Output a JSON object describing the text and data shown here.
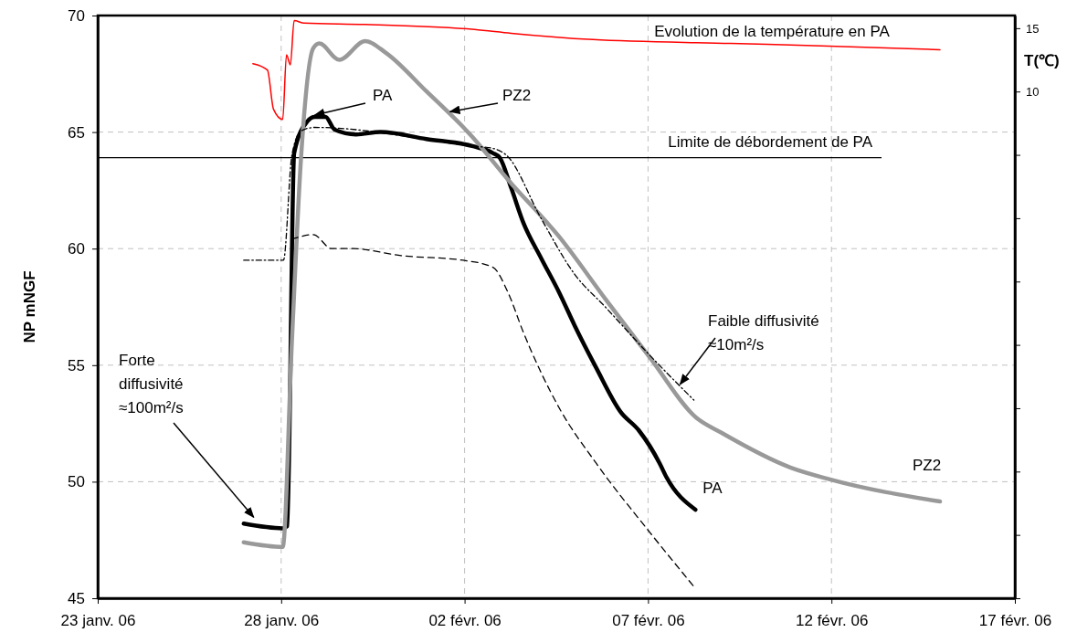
{
  "chart_data": {
    "type": "line",
    "ylabel": "NP mNGF",
    "y2label": "T(℃)",
    "xlim": [
      "--01-23",
      "--02-17"
    ],
    "xticks": [
      {
        "value": "--01-23",
        "label": "23 janv. 06"
      },
      {
        "value": "--01-28",
        "label": "28 janv. 06"
      },
      {
        "value": "--02-02",
        "label": "02 févr. 06"
      },
      {
        "value": "--02-07",
        "label": "07 févr. 06"
      },
      {
        "value": "--02-12",
        "label": "12 févr. 06"
      },
      {
        "value": "--02-17",
        "label": "17 févr. 06"
      }
    ],
    "ylim": [
      45,
      70
    ],
    "yticks": [
      45,
      50,
      55,
      60,
      65,
      70
    ],
    "y2lim": [
      -30,
      16
    ],
    "y2ticks": [
      {
        "value": -30,
        "label": null
      },
      {
        "value": -25,
        "label": null
      },
      {
        "value": -20,
        "label": null
      },
      {
        "value": -15,
        "label": null
      },
      {
        "value": -10,
        "label": null
      },
      {
        "value": -5,
        "label": null
      },
      {
        "value": 0,
        "label": null
      },
      {
        "value": 5,
        "label": null
      },
      10,
      15
    ],
    "grid": true,
    "marker": "none",
    "series": [
      {
        "name": "PA",
        "color": "#000000",
        "line_style": "solid",
        "x": [
          "--01-26T23:30",
          "--01-28T01:00",
          "--01-28T04:00",
          "--01-28T08:30",
          "--01-28T17:00",
          "--01-28T22:00",
          "--01-29T05:00",
          "--01-29T11:00",
          "--01-30T01:00",
          "--01-30T17:00",
          "--01-31T23:00",
          "--02-02T05:00",
          "--02-02T18:30",
          "--02-02T23:00",
          "--02-03T06:30",
          "--02-03T14:30",
          "--02-04T02:00",
          "--02-04T14:00",
          "--02-05T00:00",
          "--02-05T14:00",
          "--02-06T06:00",
          "--02-06T18:00",
          "--02-07T07:30",
          "--02-07T12:00",
          "--02-08T07:00"
        ],
        "values": [
          48.2,
          48.0,
          48.1,
          64.1,
          65.45,
          65.65,
          65.65,
          65.1,
          64.9,
          65.0,
          64.7,
          64.4,
          64.1,
          63.9,
          62.6,
          61.1,
          59.6,
          58.1,
          56.7,
          54.9,
          53.0,
          52.2,
          50.8,
          50.2,
          48.8
        ]
      },
      {
        "name": "PZ2",
        "color": "#999999",
        "line_style": "solid",
        "x": [
          "--01-26T23:30",
          "--01-28T01:00",
          "--01-28T07:00",
          "--01-28T13:00",
          "--01-28T21:00",
          "--01-29T01:00",
          "--01-29T14:00",
          "--01-30T07:00",
          "--01-30T20:30",
          "--01-31T23:00",
          "--02-02T05:00",
          "--02-03T04:30",
          "--02-04T14:00",
          "--02-05T20:00",
          "--02-07T01:30",
          "--02-08T07:30",
          "--02-09T00:00",
          "--02-10T21:30",
          "--02-11T23:00",
          "--02-14T23:00"
        ],
        "values": [
          47.4,
          47.2,
          56.0,
          63.9,
          68.6,
          68.8,
          68.1,
          68.9,
          68.4,
          66.75,
          64.8,
          62.95,
          60.5,
          57.85,
          55.3,
          52.75,
          52.1,
          50.6,
          50.1,
          49.15
        ]
      },
      {
        "color": "#000000",
        "line_style": "dotted",
        "x": [
          "--01-26T23:30",
          "--01-28T01:30",
          "--01-28T07:00",
          "--01-28T13:00",
          "--01-28T22:00",
          "--02-02T05:00",
          "--02-02T18:30",
          "--02-03T03:30",
          "--02-04T02:00",
          "--02-05T00:00",
          "--02-05T20:00",
          "--02-07T01:30",
          "--02-08T06:00"
        ],
        "values": [
          59.5,
          59.5,
          64.0,
          65.05,
          65.2,
          64.4,
          64.3,
          64.0,
          61.3,
          58.9,
          57.5,
          55.4,
          53.5
        ]
      },
      {
        "color": "#000000",
        "line_style": "dashed",
        "x": [
          "--01-28T07:00",
          "--01-28T21:00",
          "--01-29T09:00",
          "--01-29T23:00",
          "--01-31T06:30",
          "--02-01T23:00",
          "--02-02T18:30",
          "--02-03T04:30",
          "--02-03T14:30",
          "--02-04T14:00",
          "--02-05T14:00",
          "--02-07T01:30",
          "--02-08T06:00"
        ],
        "values": [
          60.4,
          60.6,
          60.0,
          60.0,
          59.7,
          59.5,
          59.2,
          58.1,
          56.4,
          53.15,
          50.8,
          47.8,
          45.5
        ]
      },
      {
        "color": "#ff0000",
        "axis": "y2",
        "line_style": "solid",
        "x": [
          "--01-27T05:30",
          "--01-27T15:00",
          "--01-27T19:00",
          "--01-28T01:00",
          "--01-28T03:30",
          "--01-28T06:00",
          "--01-28T08:30",
          "--01-28T15:00",
          "--01-30T07:00",
          "--02-02T06:30",
          "--02-03T06:30",
          "--02-05T12:00",
          "--02-09T06:00",
          "--02-11T17:30",
          "--02-14T23:00"
        ],
        "values": [
          12.2,
          11.7,
          8.6,
          7.8,
          12.9,
          12.1,
          15.6,
          15.4,
          15.3,
          14.9,
          14.6,
          14.1,
          13.8,
          13.6,
          13.3
        ]
      }
    ],
    "ref_lines": [
      {
        "axis": "y",
        "value": 63.9,
        "label": "Limite de débordement de PA",
        "color": "#000000"
      }
    ],
    "annotations": [
      "Evolution de la température en PA",
      {
        "text": "PA",
        "x": "--01-28T22:00",
        "y": 65.65
      },
      {
        "text": "PZ2",
        "x": "--02-01T14:30",
        "y": 65.8
      },
      {
        "text": "Faible diffusivité\n≈10m²/s",
        "x": "--02-07T21:00",
        "y": 54.1
      },
      {
        "text": "Forte\ndiffusivité\n≈100m²/s",
        "x": "--01-27T06:00",
        "y": 48.4
      }
    ]
  }
}
